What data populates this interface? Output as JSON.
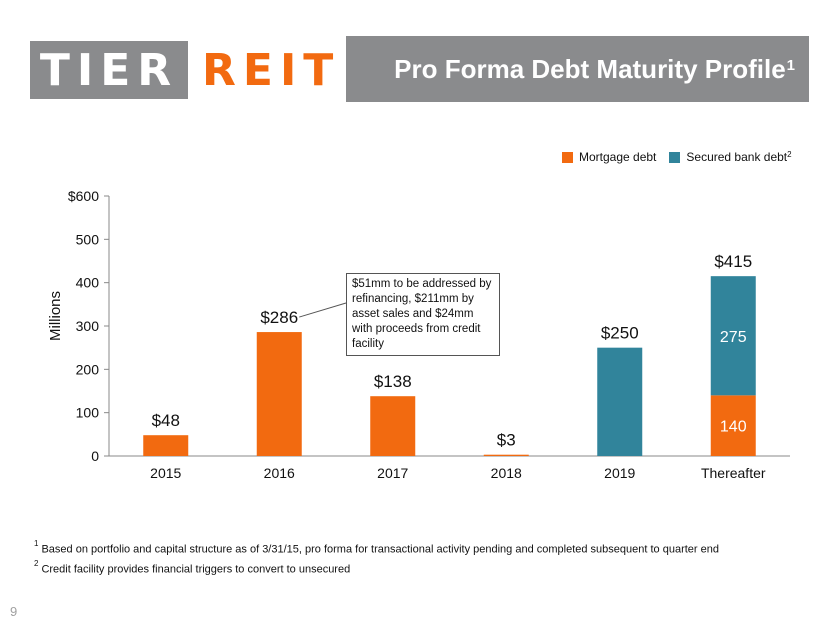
{
  "logo": {
    "part1": "TIER",
    "part2": "REIT"
  },
  "header": {
    "title": "Pro Forma Debt Maturity Profile",
    "title_sup": "1"
  },
  "legend": {
    "mortgage": {
      "label": "Mortgage debt",
      "sup": ""
    },
    "bank": {
      "label": "Secured bank debt",
      "sup": "2"
    }
  },
  "colors": {
    "mortgage": "#f26a10",
    "bank": "#31849b",
    "header_bg": "#8a8b8d"
  },
  "callout": {
    "text": "$51mm to be addressed by refinancing, $211mm by asset sales and $24mm with proceeds from credit facility"
  },
  "footnotes": [
    {
      "sup": "1",
      "text": "Based on portfolio and capital structure as of 3/31/15, pro forma for transactional activity pending and completed subsequent to quarter end"
    },
    {
      "sup": "2",
      "text": "Credit facility provides  financial  triggers to convert to unsecured"
    }
  ],
  "page_number": "9",
  "chart_data": {
    "type": "bar",
    "stacked": true,
    "title": "Pro Forma Debt Maturity Profile",
    "xlabel": "",
    "ylabel": "Millions",
    "ylim": [
      0,
      600
    ],
    "yticks": [
      0,
      100,
      200,
      300,
      400,
      500,
      600
    ],
    "ytick_labels": [
      "0",
      "100",
      "200",
      "300",
      "400",
      "500",
      "$600"
    ],
    "categories": [
      "2015",
      "2016",
      "2017",
      "2018",
      "2019",
      "Thereafter"
    ],
    "series": [
      {
        "name": "Mortgage debt",
        "values": [
          48,
          286,
          138,
          3,
          0,
          140
        ]
      },
      {
        "name": "Secured bank debt",
        "values": [
          0,
          0,
          0,
          0,
          250,
          275
        ]
      }
    ],
    "total_labels": [
      "$48",
      "$286",
      "$138",
      "$3",
      "$250",
      "$415"
    ],
    "segment_labels": {
      "Thereafter": {
        "Mortgage debt": "140",
        "Secured bank debt": "275"
      }
    },
    "legend_position": "top-right"
  }
}
